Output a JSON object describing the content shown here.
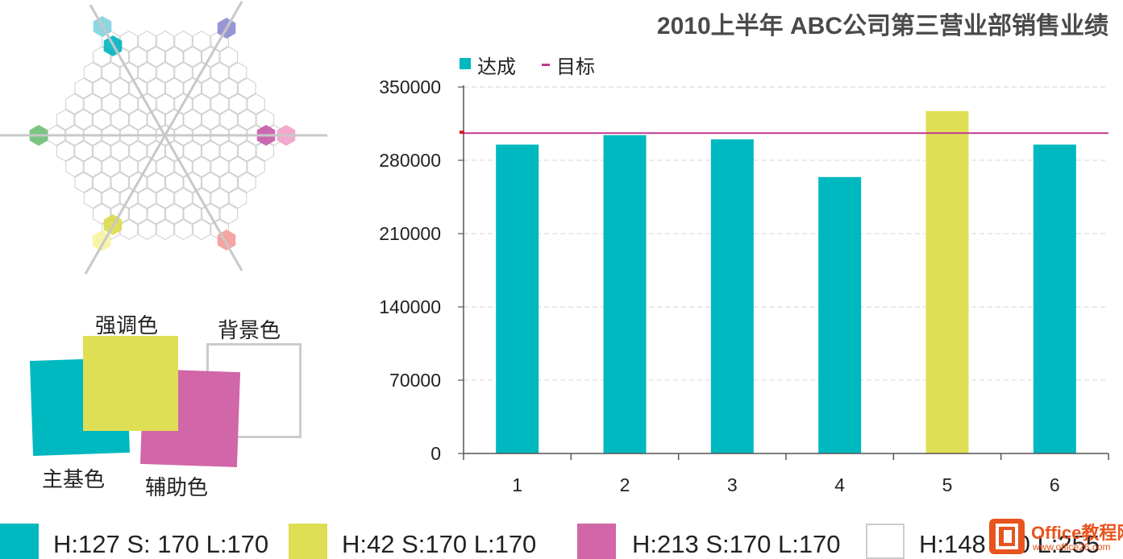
{
  "color_wheel": {
    "accents": {
      "top_left_light": "#7fd3df",
      "top_left": "#00b5be",
      "top_right": "#8d8cd0",
      "left": "#6dbf73",
      "right": "#c75aa7",
      "right_light": "#f0a0c8",
      "bottom_left": "#dcdc4a",
      "bottom_left_light": "#f7f3a0",
      "bottom_right": "#f59a9a"
    }
  },
  "swatches": {
    "primary": {
      "label": "主基色",
      "color": "#00b8bf"
    },
    "accent": {
      "label": "强调色",
      "color": "#dfdf55"
    },
    "secondary": {
      "label": "辅助色",
      "color": "#d166a8"
    },
    "background": {
      "label": "背景色",
      "color": "#ffffff",
      "border": "#cccccc"
    }
  },
  "chart_data": {
    "type": "bar",
    "title": "2010上半年 ABC公司第三营业部销售业绩",
    "categories": [
      "1",
      "2",
      "3",
      "4",
      "5",
      "6"
    ],
    "series": [
      {
        "name": "达成",
        "values": [
          295000,
          304000,
          300000,
          264000,
          327000,
          295000
        ],
        "color": "#00b8bf",
        "highlight_color": "#dfdf55",
        "highlight_index": 4
      }
    ],
    "target": {
      "name": "目标",
      "value": 306000,
      "color": "#c0398f"
    },
    "y_ticks": [
      "350000",
      "280000",
      "210000",
      "140000",
      "70000",
      "0"
    ],
    "ylim": [
      0,
      350000
    ],
    "grid": true,
    "legend_position": "top-left"
  },
  "color_legend": [
    {
      "color": "#00b8bf",
      "text": "H:127  S: 170  L:170"
    },
    {
      "color": "#dfdf55",
      "text": "H:42  S:170  L:170"
    },
    {
      "color": "#d166a8",
      "text": "H:213  S:170  L:170"
    },
    {
      "color": "#ffffff",
      "text": "H:148  S:0  L:255"
    }
  ],
  "watermark": {
    "title": "Office教程网",
    "url": "www.office26.com"
  }
}
